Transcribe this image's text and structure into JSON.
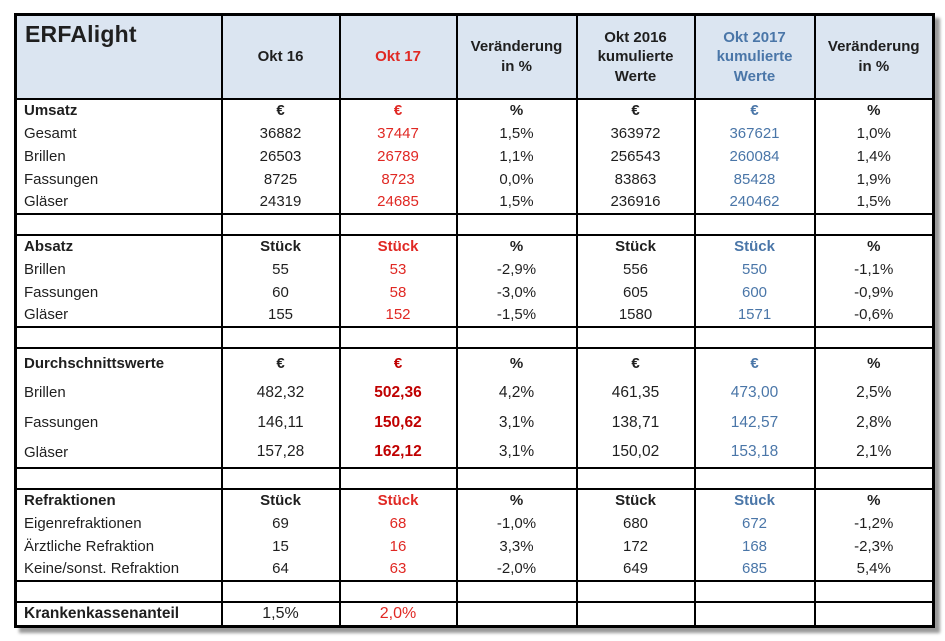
{
  "title": "ERFAlight",
  "columns": [
    {
      "label": "Okt 16",
      "color": "black"
    },
    {
      "label": "Okt 17",
      "color": "red"
    },
    {
      "label": "Veränderung\nin %",
      "color": "black"
    },
    {
      "label": "Okt 2016\nkumulierte\nWerte",
      "color": "black"
    },
    {
      "label": "Okt 2017\nkumulierte\nWerte",
      "color": "blue"
    },
    {
      "label": "Veränderung\nin %",
      "color": "black"
    }
  ],
  "sections": [
    {
      "name": "Umsatz",
      "units": [
        "€",
        "€",
        "%",
        "€",
        "€",
        "%"
      ],
      "rows": [
        {
          "label": "Gesamt",
          "values": [
            "36882",
            "37447",
            "1,5%",
            "363972",
            "367621",
            "1,0%"
          ]
        },
        {
          "label": "Brillen",
          "values": [
            "26503",
            "26789",
            "1,1%",
            "256543",
            "260084",
            "1,4%"
          ]
        },
        {
          "label": "Fassungen",
          "values": [
            "8725",
            "8723",
            "0,0%",
            "83863",
            "85428",
            "1,9%"
          ]
        },
        {
          "label": "Gläser",
          "values": [
            "24319",
            "24685",
            "1,5%",
            "236916",
            "240462",
            "1,5%"
          ]
        }
      ]
    },
    {
      "name": "Absatz",
      "units": [
        "Stück",
        "Stück",
        "%",
        "Stück",
        "Stück",
        "%"
      ],
      "rows": [
        {
          "label": "Brillen",
          "values": [
            "55",
            "53",
            "-2,9%",
            "556",
            "550",
            "-1,1%"
          ]
        },
        {
          "label": "Fassungen",
          "values": [
            "60",
            "58",
            "-3,0%",
            "605",
            "600",
            "-0,9%"
          ]
        },
        {
          "label": "Gläser",
          "values": [
            "155",
            "152",
            "-1,5%",
            "1580",
            "1571",
            "-0,6%"
          ]
        }
      ]
    },
    {
      "name": "Durchschnittswerte",
      "tall": true,
      "emphasize_col2": true,
      "units": [
        "€",
        "€",
        "%",
        "€",
        "€",
        "%"
      ],
      "rows": [
        {
          "label": "Brillen",
          "values": [
            "482,32",
            "502,36",
            "4,2%",
            "461,35",
            "473,00",
            "2,5%"
          ]
        },
        {
          "label": "Fassungen",
          "values": [
            "146,11",
            "150,62",
            "3,1%",
            "138,71",
            "142,57",
            "2,8%"
          ]
        },
        {
          "label": "Gläser",
          "values": [
            "157,28",
            "162,12",
            "3,1%",
            "150,02",
            "153,18",
            "2,1%"
          ]
        }
      ]
    },
    {
      "name": "Refraktionen",
      "units": [
        "Stück",
        "Stück",
        "%",
        "Stück",
        "Stück",
        "%"
      ],
      "rows": [
        {
          "label": "Eigenrefraktionen",
          "values": [
            "69",
            "68",
            "-1,0%",
            "680",
            "672",
            "-1,2%"
          ]
        },
        {
          "label": "Ärztliche Refraktion",
          "values": [
            "15",
            "16",
            "3,3%",
            "172",
            "168",
            "-2,3%"
          ]
        },
        {
          "label": "Keine/sonst. Refraktion",
          "values": [
            "64",
            "63",
            "-2,0%",
            "649",
            "685",
            "5,4%"
          ]
        }
      ]
    }
  ],
  "footer": {
    "label": "Krankenkassenanteil",
    "values": [
      "1,5%",
      "2,0%",
      "",
      "",
      "",
      ""
    ]
  },
  "colors": {
    "header_bg": "#dbe5f1",
    "red": "#e02823",
    "dark_red": "#c00000",
    "blue": "#4a76a8",
    "border": "#000000"
  }
}
